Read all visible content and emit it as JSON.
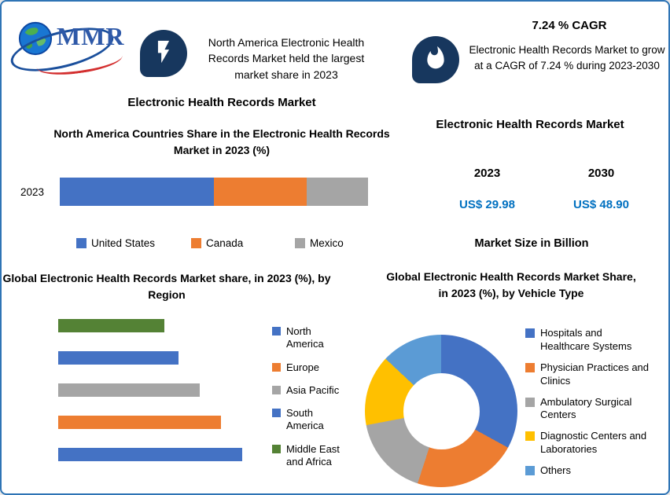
{
  "page": {
    "background": "#ffffff",
    "border_color": "#2e74b5"
  },
  "logo": {
    "text": "MMR"
  },
  "header": {
    "left_callout": {
      "icon": "lightning-bolt",
      "text": "North America Electronic Health Records Market held the largest market share in 2023"
    },
    "right_callout": {
      "cagr_title": "7.24 % CAGR",
      "icon": "flame",
      "text": "Electronic Health Records Market to grow at a CAGR of 7.24 % during 2023-2030"
    }
  },
  "left_panel": {
    "section_title": "Electronic Health Records Market"
  },
  "right_panel": {
    "section_title": "Electronic Health Records Market",
    "year_left": "2023",
    "year_right": "2030",
    "value_left": "US$ 29.98",
    "value_right": "US$ 48.90",
    "caption": "Market Size in Billion",
    "value_color": "#0070c0"
  },
  "chart_data": [
    {
      "type": "bar",
      "subtype": "stacked-horizontal",
      "title": "North America Countries Share in the Electronic Health Records Market in 2023 (%)",
      "categories": [
        "2023"
      ],
      "series": [
        {
          "name": "United States",
          "color": "#4472c4",
          "values": [
            50
          ]
        },
        {
          "name": "Canada",
          "color": "#ed7d31",
          "values": [
            30
          ]
        },
        {
          "name": "Mexico",
          "color": "#a5a5a5",
          "values": [
            20
          ]
        }
      ],
      "xlim": [
        0,
        100
      ],
      "legend_position": "bottom",
      "note": "segment sizes estimated from bar proportions; no numeric labels shown"
    },
    {
      "type": "bar",
      "subtype": "horizontal",
      "title": "Global Electronic Health Records Market share, in 2023 (%), by Region",
      "bars_top_to_bottom": [
        {
          "label": "Middle East and Africa",
          "value": 15,
          "color": "#548235"
        },
        {
          "label": "South America",
          "value": 17,
          "color": "#4472c4"
        },
        {
          "label": "Asia Pacific",
          "value": 20,
          "color": "#a5a5a5"
        },
        {
          "label": "Europe",
          "value": 23,
          "color": "#ed7d31"
        },
        {
          "label": "North America",
          "value": 26,
          "color": "#4472c4"
        }
      ],
      "legend": [
        {
          "label": "North America",
          "color": "#4472c4"
        },
        {
          "label": "Europe",
          "color": "#ed7d31"
        },
        {
          "label": "Asia Pacific",
          "color": "#a5a5a5"
        },
        {
          "label": "South America",
          "color": "#4472c4"
        },
        {
          "label": "Middle East and Africa",
          "color": "#548235"
        }
      ],
      "legend_position": "right",
      "note": "bars unlabeled; values estimated from relative bar lengths"
    },
    {
      "type": "pie",
      "subtype": "donut",
      "title": "Global Electronic Health Records Market Share, in 2023 (%), by Vehicle Type",
      "labels": [
        "Hospitals and Healthcare Systems",
        "Physician Practices and Clinics",
        "Ambulatory Surgical Centers",
        "Diagnostic Centers and Laboratories",
        "Others"
      ],
      "values": [
        33,
        22,
        17,
        15,
        13
      ],
      "colors": [
        "#4472c4",
        "#ed7d31",
        "#a5a5a5",
        "#ffc000",
        "#5b9bd5"
      ],
      "legend_position": "right",
      "note": "slice sizes estimated from arc angles; no numeric labels shown"
    }
  ]
}
